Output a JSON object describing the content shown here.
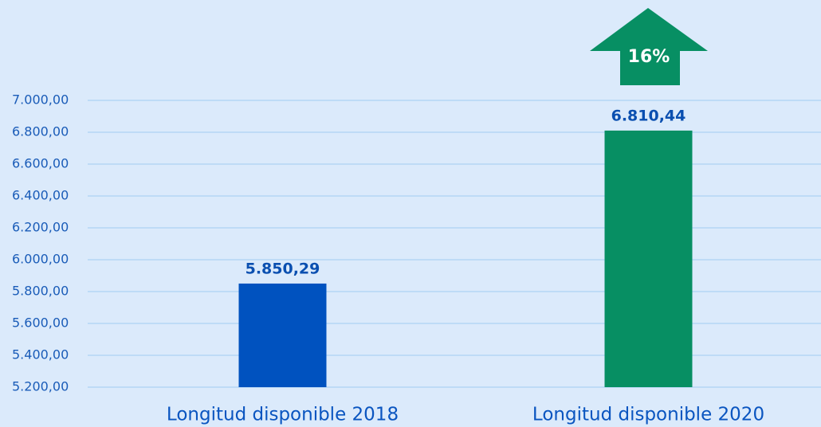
{
  "chart_data": {
    "type": "bar",
    "categories": [
      "Longitud disponible 2018",
      "Longitud disponible 2020"
    ],
    "values": [
      5850.29,
      6810.44
    ],
    "value_labels": [
      "5.850,29",
      "6.810,44"
    ],
    "colors": [
      "#0052bf",
      "#078f63"
    ],
    "ylim": [
      5200,
      7000
    ],
    "yticks": [
      {
        "value": 5200,
        "label": "5.200,00"
      },
      {
        "value": 5400,
        "label": "5.400,00"
      },
      {
        "value": 5600,
        "label": "5.600,00"
      },
      {
        "value": 5800,
        "label": "5.800,00"
      },
      {
        "value": 6000,
        "label": "6.000,00"
      },
      {
        "value": 6200,
        "label": "6.200,00"
      },
      {
        "value": 6400,
        "label": "6.400,00"
      },
      {
        "value": 6600,
        "label": "6.600,00"
      },
      {
        "value": 6800,
        "label": "6.800,00"
      },
      {
        "value": 7000,
        "label": "7.000,00"
      }
    ],
    "grid": true,
    "annotation": "16%"
  }
}
